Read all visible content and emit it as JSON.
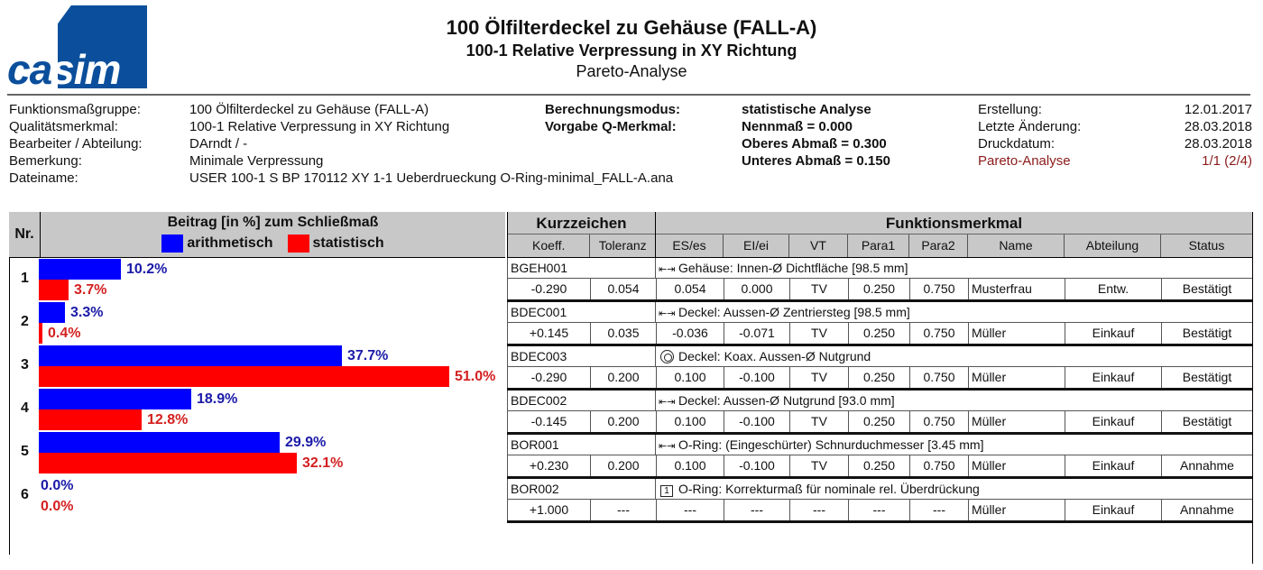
{
  "logo": {
    "text": "casim"
  },
  "title": {
    "line1": "100 Ölfilterdeckel zu Gehäuse (FALL-A)",
    "line2": "100-1 Relative Verpressung in XY Richtung",
    "line3": "Pareto-Analyse"
  },
  "info_left": [
    {
      "label": "Funktionsmaßgruppe:",
      "value": "100 Ölfilterdeckel zu Gehäuse (FALL-A)"
    },
    {
      "label": "Qualitätsmerkmal:",
      "value": "100-1 Relative Verpressung in XY Richtung"
    },
    {
      "label": "Bearbeiter / Abteilung:",
      "value": "DArndt /  -"
    },
    {
      "label": "Bemerkung:",
      "value": "Minimale Verpressung"
    },
    {
      "label": "Dateiname:",
      "value": "USER 100-1 S BP 170112 XY 1-1 Ueberdrueckung O-Ring-minimal_FALL-A.ana"
    }
  ],
  "info_mid": [
    {
      "label": "Berechnungsmodus:",
      "value": "statistische Analyse"
    },
    {
      "label": "Vorgabe Q-Merkmal:",
      "value": "Nennmaß =  0.000"
    },
    {
      "label": "",
      "value": "Oberes Abmaß =  0.300"
    },
    {
      "label": "",
      "value": "Unteres Abmaß =  0.150"
    }
  ],
  "info_right": [
    {
      "label": "Erstellung:",
      "value": "12.01.2017"
    },
    {
      "label": "Letzte Änderung:",
      "value": "28.03.2018"
    },
    {
      "label": "Druckdatum:",
      "value": "28.03.2018"
    },
    {
      "label": "Pareto-Analyse",
      "value": "1/1 (2/4)"
    }
  ],
  "table_header": {
    "nr": "Nr.",
    "beitrag": "Beitrag [in %] zum Schließmaß",
    "legend_arith": "arithmetisch",
    "legend_stat": "statistisch",
    "kurzzeichen": "Kurzzeichen",
    "funktionsmerkmal": "Funktionsmerkmal",
    "columns": [
      "Koeff.",
      "Toleranz",
      "ES/es",
      "EI/ei",
      "VT",
      "Para1",
      "Para2",
      "Name",
      "Abteilung",
      "Status"
    ]
  },
  "colors": {
    "arithmetic": "#0000ff",
    "statistic": "#ff0000",
    "header_bg": "#c8c8c8"
  },
  "chart_data": {
    "type": "bar",
    "orientation": "horizontal",
    "title": "Beitrag [in %] zum Schließmaß",
    "categories": [
      "1",
      "2",
      "3",
      "4",
      "5",
      "6"
    ],
    "series": [
      {
        "name": "arithmetisch",
        "values": [
          10.2,
          3.3,
          37.7,
          18.9,
          29.9,
          0.0
        ]
      },
      {
        "name": "statistisch",
        "values": [
          3.7,
          0.4,
          51.0,
          12.8,
          32.1,
          0.0
        ]
      }
    ],
    "labels_arith": [
      "10.2%",
      "3.3%",
      "37.7%",
      "18.9%",
      "29.9%",
      "0.0%"
    ],
    "labels_stat": [
      "3.7%",
      "0.4%",
      "51.0%",
      "12.8%",
      "32.1%",
      "0.0%"
    ],
    "xlim": [
      0,
      51.0
    ],
    "grid": false,
    "legend_position": "top"
  },
  "rows": [
    {
      "nr": "1",
      "code": "BGEH001",
      "icon": "dimension-icon",
      "desc": "Gehäuse: Innen-Ø Dichtfläche [98.5 mm]",
      "koeff": "-0.290",
      "tol": "0.054",
      "es": "0.054",
      "ei": "0.000",
      "vt": "TV",
      "p1": "0.250",
      "p2": "0.750",
      "name": "Musterfrau",
      "abt": "Entw.",
      "status": "Bestätigt"
    },
    {
      "nr": "2",
      "code": "BDEC001",
      "icon": "dimension-icon",
      "desc": "Deckel: Aussen-Ø Zentriersteg [98.5 mm]",
      "koeff": "+0.145",
      "tol": "0.035",
      "es": "-0.036",
      "ei": "-0.071",
      "vt": "TV",
      "p1": "0.250",
      "p2": "0.750",
      "name": "Müller",
      "abt": "Einkauf",
      "status": "Bestätigt"
    },
    {
      "nr": "3",
      "code": "BDEC003",
      "icon": "coaxiality-icon",
      "desc": "Deckel: Koax. Aussen-Ø Nutgrund",
      "koeff": "-0.290",
      "tol": "0.200",
      "es": "0.100",
      "ei": "-0.100",
      "vt": "TV",
      "p1": "0.250",
      "p2": "0.750",
      "name": "Müller",
      "abt": "Einkauf",
      "status": "Bestätigt"
    },
    {
      "nr": "4",
      "code": "BDEC002",
      "icon": "dimension-icon",
      "desc": "Deckel: Aussen-Ø Nutgrund [93.0 mm]",
      "koeff": "-0.145",
      "tol": "0.200",
      "es": "0.100",
      "ei": "-0.100",
      "vt": "TV",
      "p1": "0.250",
      "p2": "0.750",
      "name": "Müller",
      "abt": "Einkauf",
      "status": "Bestätigt"
    },
    {
      "nr": "5",
      "code": "BOR001",
      "icon": "dimension-icon",
      "desc": "O-Ring: (Eingeschürter) Schnurduchmesser [3.45 mm]",
      "koeff": "+0.230",
      "tol": "0.200",
      "es": "0.100",
      "ei": "-0.100",
      "vt": "TV",
      "p1": "0.250",
      "p2": "0.750",
      "name": "Müller",
      "abt": "Einkauf",
      "status": "Annahme"
    },
    {
      "nr": "6",
      "code": "BOR002",
      "icon": "boxed-number-icon",
      "icon_text": "1",
      "desc": "O-Ring: Korrekturmaß für nominale rel. Überdrückung",
      "koeff": "+1.000",
      "tol": "---",
      "es": "---",
      "ei": "---",
      "vt": "---",
      "p1": "---",
      "p2": "---",
      "name": "Müller",
      "abt": "Einkauf",
      "status": "Annahme"
    }
  ]
}
